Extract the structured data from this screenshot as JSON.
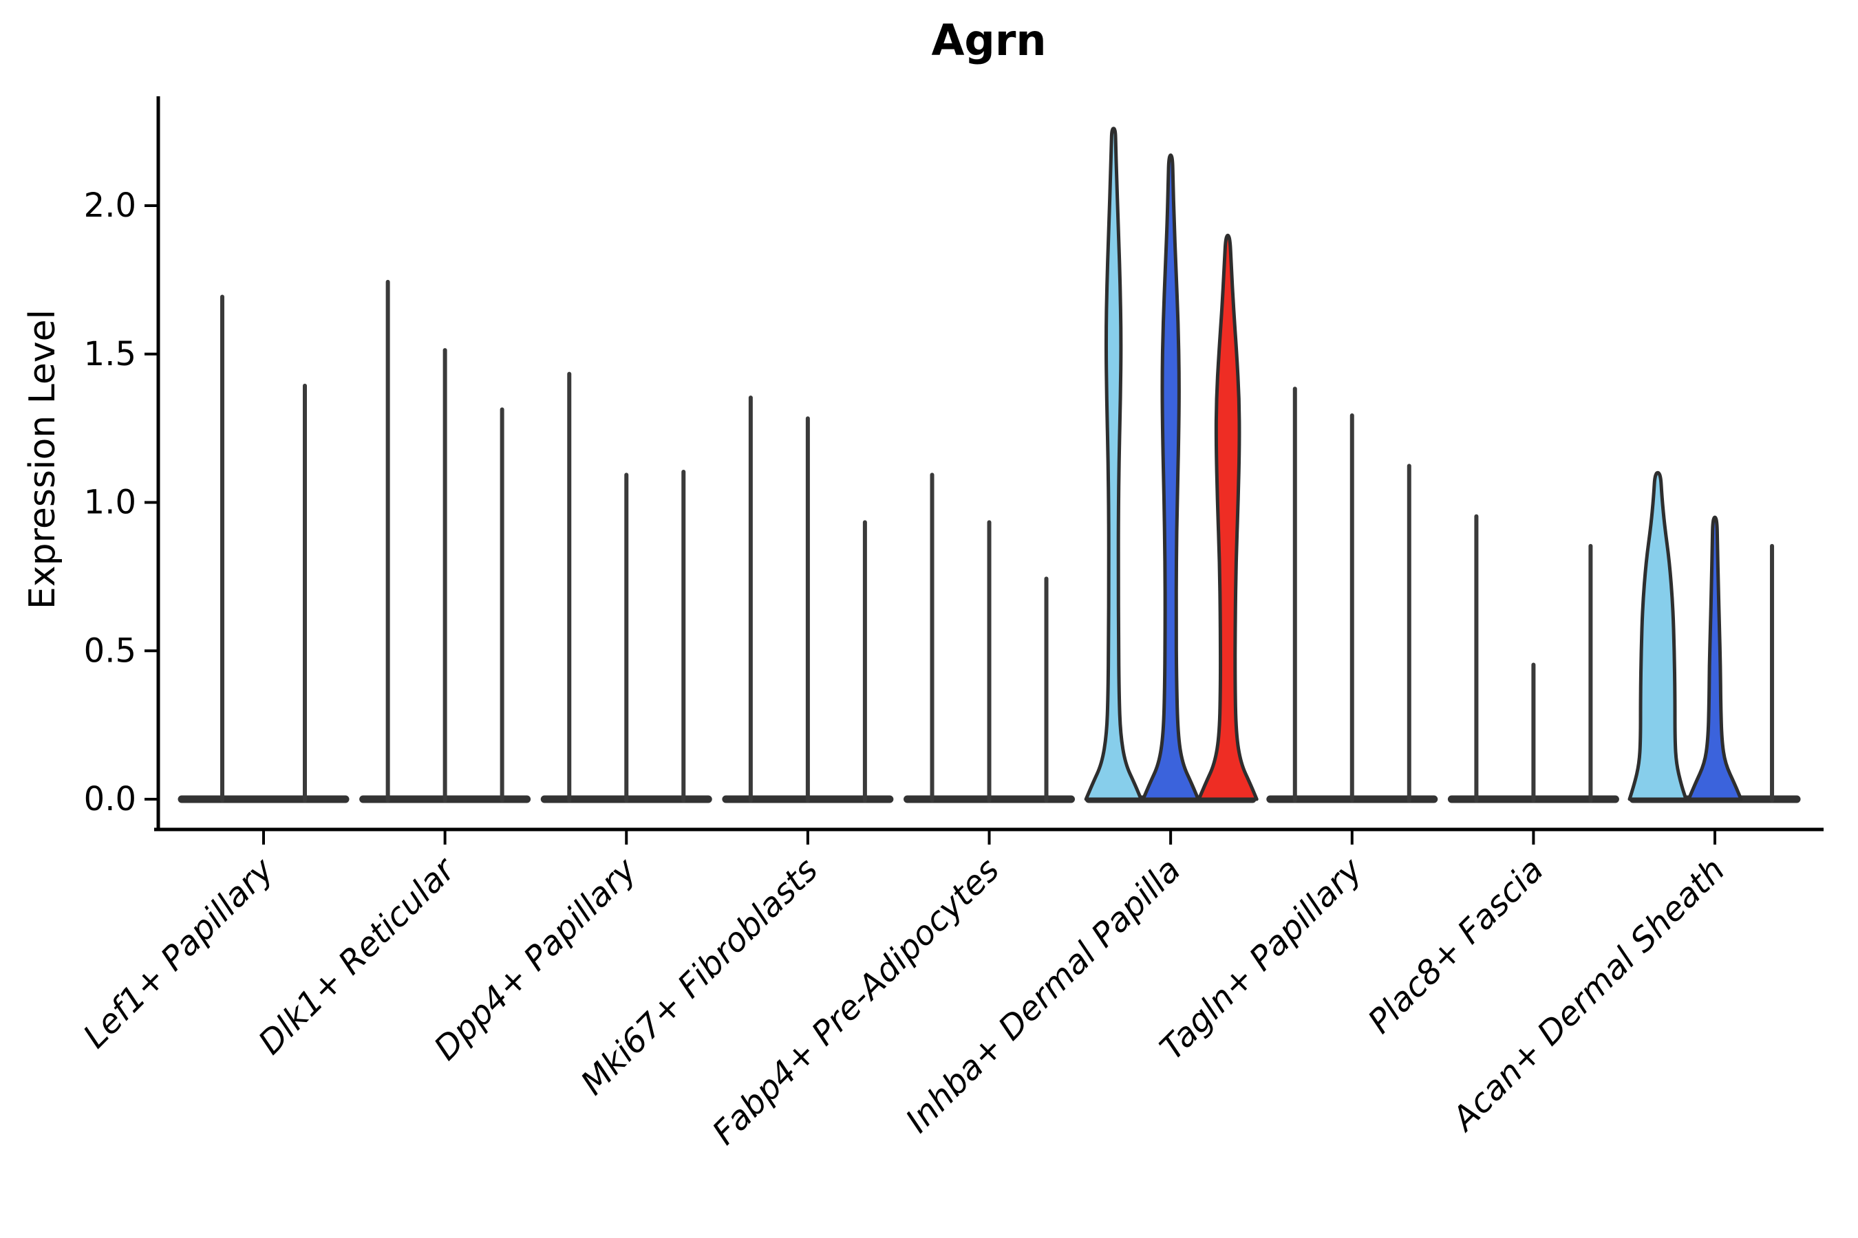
{
  "title": "Agrn",
  "ylabel": "Expression Level",
  "chart_data": {
    "type": "violin",
    "title": "Agrn",
    "xlabel": "",
    "ylabel": "Expression Level",
    "ylim": [
      0,
      2.37
    ],
    "yticks": [
      0.0,
      0.5,
      1.0,
      1.5,
      2.0
    ],
    "ytick_labels": [
      "0.0",
      "0.5",
      "1.0",
      "1.5",
      "2.0"
    ],
    "grid": false,
    "legend": "none",
    "categories": [
      "Lef1+ Papillary",
      "Dlk1+ Reticular",
      "Dpp4+ Papillary",
      "Mki67+ Fibroblasts",
      "Fabp4+ Pre-Adipocytes",
      "Inhba+ Dermal Papilla",
      "Tagln+ Papillary",
      "Plac8+ Fascia",
      "Acan+ Dermal Sheath"
    ],
    "colors": {
      "spike": "#3a3a3a",
      "outline": "#2e2e2e",
      "base_bar": "#333333",
      "axis": "#000000",
      "skyblue": "#87CEEB",
      "royalblue": "#3B63DC",
      "red": "#EE2D24"
    },
    "groups": [
      {
        "category": "Lef1+ Papillary",
        "violins": [
          {
            "offset": -60,
            "max": 1.7,
            "style": "spike"
          },
          {
            "offset": 60,
            "max": 1.4,
            "style": "spike"
          }
        ]
      },
      {
        "category": "Dlk1+ Reticular",
        "violins": [
          {
            "offset": -83,
            "max": 1.75,
            "style": "spike"
          },
          {
            "offset": 0,
            "max": 1.52,
            "style": "spike"
          },
          {
            "offset": 83,
            "max": 1.32,
            "style": "spike"
          }
        ]
      },
      {
        "category": "Dpp4+ Papillary",
        "violins": [
          {
            "offset": -83,
            "max": 1.44,
            "style": "spike"
          },
          {
            "offset": 0,
            "max": 1.1,
            "style": "spike"
          },
          {
            "offset": 83,
            "max": 1.11,
            "style": "spike"
          }
        ]
      },
      {
        "category": "Mki67+ Fibroblasts",
        "violins": [
          {
            "offset": -83,
            "max": 1.36,
            "style": "spike"
          },
          {
            "offset": 0,
            "max": 1.29,
            "style": "spike"
          },
          {
            "offset": 83,
            "max": 0.94,
            "style": "spike"
          }
        ]
      },
      {
        "category": "Fabp4+ Pre-Adipocytes",
        "violins": [
          {
            "offset": -83,
            "max": 1.1,
            "style": "spike"
          },
          {
            "offset": 0,
            "max": 0.94,
            "style": "spike"
          },
          {
            "offset": 83,
            "max": 0.75,
            "style": "spike"
          }
        ]
      },
      {
        "category": "Inhba+ Dermal Papilla",
        "violins": [
          {
            "offset": -83,
            "max": 2.26,
            "style": "shaped",
            "fill": "#87CEEB",
            "profile": [
              [
                0,
                40
              ],
              [
                0.05,
                31
              ],
              [
                0.12,
                17
              ],
              [
                0.22,
                10
              ],
              [
                0.35,
                8
              ],
              [
                0.55,
                7.2
              ],
              [
                0.75,
                7
              ],
              [
                0.95,
                7
              ],
              [
                1.15,
                8
              ],
              [
                1.35,
                10
              ],
              [
                1.55,
                11
              ],
              [
                1.75,
                9.5
              ],
              [
                1.95,
                6.5
              ],
              [
                2.1,
                4.5
              ],
              [
                2.2,
                3.2
              ],
              [
                2.26,
                2.6
              ]
            ]
          },
          {
            "offset": 0,
            "max": 2.17,
            "style": "shaped",
            "fill": "#3B63DC",
            "profile": [
              [
                0,
                40
              ],
              [
                0.05,
                31
              ],
              [
                0.12,
                17
              ],
              [
                0.22,
                10.5
              ],
              [
                0.4,
                8.5
              ],
              [
                0.6,
                8
              ],
              [
                0.8,
                8.2
              ],
              [
                1.0,
                9.5
              ],
              [
                1.2,
                11.5
              ],
              [
                1.4,
                12.5
              ],
              [
                1.6,
                11
              ],
              [
                1.8,
                7.5
              ],
              [
                1.95,
                5
              ],
              [
                2.08,
                3.5
              ],
              [
                2.17,
                2.6
              ]
            ]
          },
          {
            "offset": 83,
            "max": 1.9,
            "style": "shaped",
            "fill": "#EE2D24",
            "profile": [
              [
                0,
                42
              ],
              [
                0.05,
                33
              ],
              [
                0.12,
                19
              ],
              [
                0.22,
                12
              ],
              [
                0.4,
                10.5
              ],
              [
                0.6,
                10.8
              ],
              [
                0.8,
                12
              ],
              [
                1.0,
                15
              ],
              [
                1.2,
                17
              ],
              [
                1.35,
                16.5
              ],
              [
                1.5,
                13
              ],
              [
                1.65,
                8.5
              ],
              [
                1.8,
                5
              ],
              [
                1.9,
                3
              ]
            ]
          }
        ]
      },
      {
        "category": "Tagln+ Papillary",
        "violins": [
          {
            "offset": -83,
            "max": 1.39,
            "style": "spike"
          },
          {
            "offset": 0,
            "max": 1.3,
            "style": "spike"
          },
          {
            "offset": 83,
            "max": 1.13,
            "style": "spike"
          }
        ]
      },
      {
        "category": "Plac8+ Fascia",
        "violins": [
          {
            "offset": -83,
            "max": 0.96,
            "style": "spike"
          },
          {
            "offset": 0,
            "max": 0.46,
            "style": "spike"
          },
          {
            "offset": 83,
            "max": 0.86,
            "style": "spike"
          }
        ]
      },
      {
        "category": "Acan+ Dermal Sheath",
        "violins": [
          {
            "offset": -83,
            "max": 1.1,
            "style": "shaped",
            "fill": "#87CEEB",
            "profile": [
              [
                0,
                41
              ],
              [
                0.05,
                34
              ],
              [
                0.12,
                27
              ],
              [
                0.2,
                25
              ],
              [
                0.35,
                25
              ],
              [
                0.5,
                24
              ],
              [
                0.65,
                22
              ],
              [
                0.8,
                17
              ],
              [
                0.92,
                10
              ],
              [
                1.02,
                6
              ],
              [
                1.1,
                4
              ]
            ]
          },
          {
            "offset": 0,
            "max": 0.95,
            "style": "shaped",
            "fill": "#3B63DC",
            "profile": [
              [
                0,
                38
              ],
              [
                0.05,
                29
              ],
              [
                0.12,
                15
              ],
              [
                0.2,
                10
              ],
              [
                0.32,
                8.5
              ],
              [
                0.45,
                8
              ],
              [
                0.58,
                6.5
              ],
              [
                0.72,
                5
              ],
              [
                0.85,
                3.8
              ],
              [
                0.95,
                3
              ]
            ]
          },
          {
            "offset": 83,
            "max": 0.86,
            "style": "spike"
          }
        ]
      }
    ]
  }
}
